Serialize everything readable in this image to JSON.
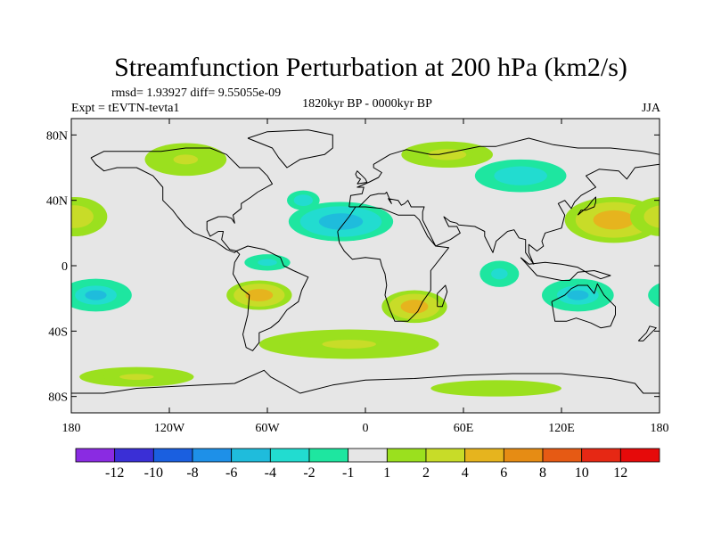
{
  "chart_data": {
    "type": "heatmap",
    "title": "Streamfunction Perturbation at 200 hPa (km2/s)",
    "stats": "rmsd= 1.93927  diff= 9.55055e-09",
    "experiment": "Expt = tEVTN-tevta1",
    "period": "1820kyr BP - 0000kyr BP",
    "season": "JJA",
    "projection": "cylindrical equidistant",
    "x_range": [
      -180,
      180
    ],
    "y_range": [
      -90,
      90
    ],
    "x_ticks": [
      {
        "value": -180,
        "label": "180"
      },
      {
        "value": -120,
        "label": "120W"
      },
      {
        "value": -60,
        "label": "60W"
      },
      {
        "value": 0,
        "label": "0"
      },
      {
        "value": 60,
        "label": "60E"
      },
      {
        "value": 120,
        "label": "120E"
      },
      {
        "value": 180,
        "label": "180"
      }
    ],
    "y_ticks": [
      {
        "value": 80,
        "label": "80N"
      },
      {
        "value": 40,
        "label": "40N"
      },
      {
        "value": 0,
        "label": "0"
      },
      {
        "value": -40,
        "label": "40S"
      },
      {
        "value": -80,
        "label": "80S"
      }
    ],
    "colorbar": {
      "levels": [
        "-12",
        "-10",
        "-8",
        "-6",
        "-4",
        "-2",
        "-1",
        "1",
        "2",
        "4",
        "6",
        "8",
        "10",
        "12"
      ],
      "colors": [
        "#8a2be2",
        "#3a2fd6",
        "#1a5fe0",
        "#1e90e8",
        "#1fbcdc",
        "#22dcd0",
        "#1ee6a0",
        "#e6e6e6",
        "#9be01e",
        "#c8dc28",
        "#e6b41e",
        "#e68c14",
        "#e65a14",
        "#e62814",
        "#e60a0a"
      ]
    },
    "field_features": [
      {
        "name": "north-atlantic-africa-low",
        "lon": -15,
        "lat": 27,
        "value": -7,
        "dlon": 32,
        "dlat": 12
      },
      {
        "name": "west-atlantic-low",
        "lon": -38,
        "lat": 40,
        "value": -4,
        "dlon": 10,
        "dlat": 6
      },
      {
        "name": "north-pacific-high",
        "lon": 152,
        "lat": 28,
        "value": 7,
        "dlon": 30,
        "dlat": 14
      },
      {
        "name": "north-pacific-low",
        "lon": 95,
        "lat": 55,
        "value": -4,
        "dlon": 28,
        "dlat": 10
      },
      {
        "name": "east-pacific-high",
        "lon": -178,
        "lat": 30,
        "value": 4,
        "dlon": 20,
        "dlat": 12
      },
      {
        "name": "arctic-eurasia-high",
        "lon": 50,
        "lat": 68,
        "value": 3,
        "dlon": 28,
        "dlat": 8
      },
      {
        "name": "north-america-high",
        "lon": -110,
        "lat": 65,
        "value": 2.5,
        "dlon": 25,
        "dlat": 10
      },
      {
        "name": "south-america-high",
        "lon": -65,
        "lat": -18,
        "value": 6,
        "dlon": 20,
        "dlat": 9
      },
      {
        "name": "southern-africa-high",
        "lon": 30,
        "lat": -25,
        "value": 6.5,
        "dlon": 20,
        "dlat": 10
      },
      {
        "name": "south-pacific-low",
        "lon": -165,
        "lat": -18,
        "value": -5,
        "dlon": 22,
        "dlat": 10
      },
      {
        "name": "australia-low",
        "lon": 130,
        "lat": -18,
        "value": -5,
        "dlon": 22,
        "dlat": 10
      },
      {
        "name": "indian-ocean-low",
        "lon": 82,
        "lat": -5,
        "value": -3,
        "dlon": 12,
        "dlat": 8
      },
      {
        "name": "tropical-atlantic-low",
        "lon": -60,
        "lat": 2,
        "value": -3,
        "dlon": 14,
        "dlat": 5
      },
      {
        "name": "southern-ocean-high",
        "lon": -10,
        "lat": -48,
        "value": 2.5,
        "dlon": 55,
        "dlat": 9
      },
      {
        "name": "antarctic-high",
        "lon": -140,
        "lat": -68,
        "value": 2.5,
        "dlon": 35,
        "dlat": 6
      },
      {
        "name": "antarctic-high-east",
        "lon": 80,
        "lat": -75,
        "value": 2,
        "dlon": 40,
        "dlat": 5
      }
    ]
  }
}
